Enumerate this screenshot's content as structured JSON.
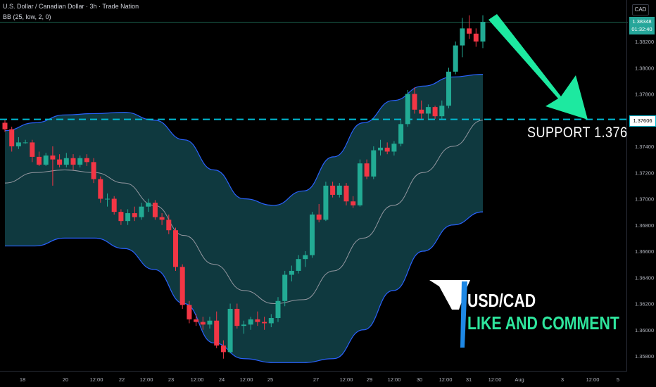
{
  "header": {
    "title": "U.S. Dollar / Canadian Dollar · 3h · Trade Nation",
    "indicator": "BB (25, low, 2, 0)"
  },
  "currency_label": "CAD",
  "price_tag": {
    "price": "1.38348",
    "countdown": "01:32:40"
  },
  "support_tag": "1.37606",
  "support_text": "SUPPORT  1.376",
  "logo": {
    "title": "USD/CAD",
    "cta": "LIKE AND COMMENT"
  },
  "colors": {
    "up": "#22ab94",
    "down": "#f23645",
    "band_fill": "#103c42",
    "band_edge": "#2962ff",
    "basis": "#9598a1",
    "support_line": "#00bcd4",
    "arrow": "#1de9a0",
    "background": "#000000"
  },
  "chart_data": {
    "type": "candlestick",
    "title": "U.S. Dollar / Canadian Dollar · 3h · Trade Nation",
    "y_axis": {
      "ylim": [
        1.3575,
        1.3855
      ],
      "ticks": [
        "1.38200",
        "1.38000",
        "1.37800",
        "1.37600",
        "1.37400",
        "1.37200",
        "1.37000",
        "1.36800",
        "1.36600",
        "1.36400",
        "1.36200",
        "1.36000",
        "1.35800"
      ]
    },
    "x_axis": {
      "ticks": [
        "18",
        "20",
        "12:00",
        "22",
        "12:00",
        "23",
        "12:00",
        "24",
        "12:00",
        "25",
        "27",
        "12:00",
        "29",
        "12:00",
        "30",
        "12:00",
        "31",
        "12:00",
        "Aug",
        "3",
        "12:00",
        "5"
      ]
    },
    "support_level": 1.37606,
    "last_price": 1.38348,
    "candles": [
      [
        1.3758,
        1.376,
        1.3751,
        1.3753
      ],
      [
        1.3753,
        1.3755,
        1.3736,
        1.374
      ],
      [
        1.374,
        1.3747,
        1.3738,
        1.3743
      ],
      [
        1.3743,
        1.3745,
        1.3742,
        1.3743
      ],
      [
        1.3743,
        1.3745,
        1.3728,
        1.3732
      ],
      [
        1.3732,
        1.3736,
        1.3725,
        1.3726
      ],
      [
        1.3726,
        1.3735,
        1.3725,
        1.3733
      ],
      [
        1.3733,
        1.374,
        1.371,
        1.373
      ],
      [
        1.373,
        1.3734,
        1.3724,
        1.3726
      ],
      [
        1.3726,
        1.3735,
        1.3724,
        1.3731
      ],
      [
        1.3731,
        1.3734,
        1.3722,
        1.3726
      ],
      [
        1.3726,
        1.3733,
        1.3724,
        1.3731
      ],
      [
        1.3731,
        1.3734,
        1.3725,
        1.3728
      ],
      [
        1.3728,
        1.3731,
        1.3712,
        1.3715
      ],
      [
        1.3715,
        1.3717,
        1.3697,
        1.37
      ],
      [
        1.37,
        1.3704,
        1.3694,
        1.37
      ],
      [
        1.37,
        1.3702,
        1.3688,
        1.369
      ],
      [
        1.369,
        1.3692,
        1.368,
        1.3683
      ],
      [
        1.3683,
        1.3692,
        1.368,
        1.3689
      ],
      [
        1.3689,
        1.3694,
        1.3683,
        1.3686
      ],
      [
        1.3686,
        1.3697,
        1.3684,
        1.3694
      ],
      [
        1.3694,
        1.37,
        1.369,
        1.3697
      ],
      [
        1.3697,
        1.3699,
        1.3684,
        1.3686
      ],
      [
        1.3686,
        1.3689,
        1.368,
        1.3684
      ],
      [
        1.3684,
        1.3688,
        1.3673,
        1.3676
      ],
      [
        1.3676,
        1.3678,
        1.3645,
        1.3648
      ],
      [
        1.3648,
        1.365,
        1.3616,
        1.3619
      ],
      [
        1.3619,
        1.3622,
        1.3605,
        1.3608
      ],
      [
        1.3608,
        1.3612,
        1.3603,
        1.3606
      ],
      [
        1.3606,
        1.361,
        1.36,
        1.3604
      ],
      [
        1.3604,
        1.361,
        1.3601,
        1.3607
      ],
      [
        1.3607,
        1.3614,
        1.3586,
        1.3588
      ],
      [
        1.3588,
        1.3592,
        1.3578,
        1.3583
      ],
      [
        1.3583,
        1.362,
        1.3582,
        1.3616
      ],
      [
        1.3616,
        1.362,
        1.3601,
        1.3603
      ],
      [
        1.3603,
        1.3607,
        1.3597,
        1.3604
      ],
      [
        1.3604,
        1.361,
        1.36,
        1.3608
      ],
      [
        1.3608,
        1.3614,
        1.3603,
        1.3606
      ],
      [
        1.3606,
        1.361,
        1.36,
        1.3605
      ],
      [
        1.3605,
        1.3612,
        1.3602,
        1.3609
      ],
      [
        1.3609,
        1.3625,
        1.3606,
        1.3622
      ],
      [
        1.3622,
        1.3645,
        1.3618,
        1.3642
      ],
      [
        1.3642,
        1.3649,
        1.3637,
        1.3645
      ],
      [
        1.3645,
        1.3657,
        1.3643,
        1.3654
      ],
      [
        1.3654,
        1.366,
        1.3648,
        1.3657
      ],
      [
        1.3657,
        1.369,
        1.3655,
        1.3688
      ],
      [
        1.3688,
        1.3696,
        1.3682,
        1.3684
      ],
      [
        1.3684,
        1.3713,
        1.3683,
        1.371
      ],
      [
        1.371,
        1.3713,
        1.3701,
        1.3703
      ],
      [
        1.3703,
        1.3712,
        1.3701,
        1.371
      ],
      [
        1.371,
        1.3712,
        1.3695,
        1.3698
      ],
      [
        1.3698,
        1.3702,
        1.3693,
        1.3695
      ],
      [
        1.3695,
        1.373,
        1.3694,
        1.3727
      ],
      [
        1.3727,
        1.373,
        1.3715,
        1.3717
      ],
      [
        1.3717,
        1.374,
        1.3715,
        1.3737
      ],
      [
        1.3737,
        1.3745,
        1.3733,
        1.3739
      ],
      [
        1.3739,
        1.3743,
        1.3734,
        1.3736
      ],
      [
        1.3736,
        1.3744,
        1.3733,
        1.3742
      ],
      [
        1.3742,
        1.376,
        1.374,
        1.3757
      ],
      [
        1.3757,
        1.3783,
        1.3755,
        1.378
      ],
      [
        1.378,
        1.3785,
        1.3765,
        1.3768
      ],
      [
        1.3768,
        1.3775,
        1.3761,
        1.3765
      ],
      [
        1.3765,
        1.3772,
        1.376,
        1.377
      ],
      [
        1.377,
        1.3771,
        1.3761,
        1.3763
      ],
      [
        1.3763,
        1.3775,
        1.3761,
        1.3771
      ],
      [
        1.3771,
        1.38,
        1.3769,
        1.3797
      ],
      [
        1.3797,
        1.382,
        1.3795,
        1.3817
      ],
      [
        1.3817,
        1.3838,
        1.3808,
        1.383
      ],
      [
        1.383,
        1.384,
        1.3822,
        1.3826
      ],
      [
        1.3826,
        1.383,
        1.3816,
        1.382
      ],
      [
        1.382,
        1.384,
        1.3815,
        1.3835
      ]
    ],
    "bollinger": {
      "upper": [
        1.3752,
        1.3758,
        1.3764,
        1.3765,
        1.3766,
        1.376,
        1.3745,
        1.3722,
        1.37,
        1.3695,
        1.3706,
        1.3732,
        1.3758,
        1.3775,
        1.3786,
        1.3793,
        1.3795
      ],
      "basis": [
        1.3712,
        1.372,
        1.3722,
        1.372,
        1.3712,
        1.3695,
        1.3672,
        1.365,
        1.363,
        1.362,
        1.3623,
        1.3645,
        1.367,
        1.3695,
        1.372,
        1.374,
        1.376
      ],
      "lower": [
        1.3664,
        1.3664,
        1.367,
        1.367,
        1.3662,
        1.3646,
        1.362,
        1.359,
        1.3578,
        1.3575,
        1.3575,
        1.3578,
        1.36,
        1.363,
        1.366,
        1.368,
        1.369
      ]
    }
  }
}
